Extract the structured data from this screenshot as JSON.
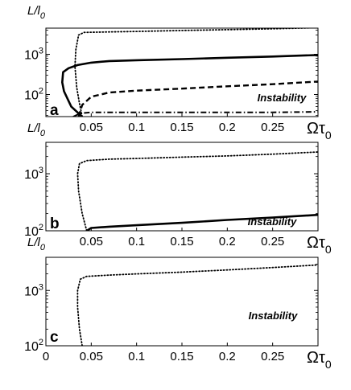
{
  "chart_data": [
    {
      "panel": "a",
      "type": "line",
      "ylabel": "L/l",
      "ylabel_sub": "0",
      "xlabel": "Ωτ",
      "xlabel_sub": "0",
      "xlim": [
        0,
        0.3
      ],
      "ylim_log10": [
        1.45,
        3.65
      ],
      "y_scale": "log",
      "x_ticks": [
        "0.05",
        "0.1",
        "0.15",
        "0.2",
        "0.25"
      ],
      "y_ticks": [
        {
          "base": "10",
          "exp": "2",
          "log10": 2
        },
        {
          "base": "10",
          "exp": "3",
          "log10": 3
        }
      ],
      "annotation": "Instability",
      "series": [
        {
          "style": "dotted",
          "points": [
            [
              0.04,
              28
            ],
            [
              0.037,
              60
            ],
            [
              0.034,
              150
            ],
            [
              0.032,
              500
            ],
            [
              0.033,
              1300
            ],
            [
              0.036,
              3000
            ],
            [
              0.042,
              3500
            ],
            [
              0.07,
              3600
            ],
            [
              0.1,
              3700
            ],
            [
              0.15,
              3900
            ],
            [
              0.2,
              4100
            ],
            [
              0.25,
              4300
            ],
            [
              0.3,
              4600
            ]
          ]
        },
        {
          "style": "solid",
          "points": [
            [
              0.04,
              28
            ],
            [
              0.028,
              50
            ],
            [
              0.02,
              120
            ],
            [
              0.018,
              200
            ],
            [
              0.019,
              360
            ],
            [
              0.025,
              450
            ],
            [
              0.035,
              540
            ],
            [
              0.05,
              620
            ],
            [
              0.07,
              680
            ],
            [
              0.1,
              710
            ],
            [
              0.15,
              760
            ],
            [
              0.2,
              820
            ],
            [
              0.25,
              880
            ],
            [
              0.3,
              960
            ]
          ]
        },
        {
          "style": "dashed",
          "points": [
            [
              0.036,
              28
            ],
            [
              0.04,
              55
            ],
            [
              0.05,
              88
            ],
            [
              0.07,
              112
            ],
            [
              0.1,
              125
            ],
            [
              0.15,
              140
            ],
            [
              0.2,
              160
            ],
            [
              0.25,
              180
            ],
            [
              0.3,
              210
            ]
          ]
        },
        {
          "style": "dashdot",
          "points": [
            [
              0.03,
              28
            ],
            [
              0.038,
              34
            ],
            [
              0.05,
              36
            ],
            [
              0.1,
              36
            ],
            [
              0.15,
              36
            ],
            [
              0.2,
              36
            ],
            [
              0.25,
              36
            ],
            [
              0.3,
              37
            ]
          ]
        }
      ]
    },
    {
      "panel": "b",
      "type": "line",
      "ylabel": "L/l",
      "ylabel_sub": "0",
      "xlabel": "Ωτ",
      "xlabel_sub": "0",
      "xlim": [
        0,
        0.3
      ],
      "ylim_log10": [
        2.0,
        3.55
      ],
      "y_scale": "log",
      "x_ticks": [
        "0.05",
        "0.1",
        "0.15",
        "0.2",
        "0.25"
      ],
      "y_ticks": [
        {
          "base": "10",
          "exp": "2",
          "log10": 2
        },
        {
          "base": "10",
          "exp": "3",
          "log10": 3
        }
      ],
      "annotation": "Instability",
      "series": [
        {
          "style": "dotted",
          "points": [
            [
              0.045,
              100
            ],
            [
              0.04,
              200
            ],
            [
              0.036,
              500
            ],
            [
              0.035,
              1000
            ],
            [
              0.037,
              1500
            ],
            [
              0.045,
              1700
            ],
            [
              0.07,
              1800
            ],
            [
              0.1,
              1850
            ],
            [
              0.15,
              1950
            ],
            [
              0.2,
              2050
            ],
            [
              0.25,
              2200
            ],
            [
              0.3,
              2400
            ]
          ]
        },
        {
          "style": "solid",
          "points": [
            [
              0.045,
              100
            ],
            [
              0.05,
              112
            ],
            [
              0.07,
              118
            ],
            [
              0.1,
              125
            ],
            [
              0.15,
              138
            ],
            [
              0.2,
              155
            ],
            [
              0.25,
              170
            ],
            [
              0.3,
              190
            ]
          ]
        }
      ]
    },
    {
      "panel": "c",
      "type": "line",
      "ylabel": "L/l",
      "ylabel_sub": "0",
      "xlabel": "Ωτ",
      "xlabel_sub": "0",
      "xlim": [
        0,
        0.3
      ],
      "ylim_log10": [
        2.0,
        3.6
      ],
      "y_scale": "log",
      "x_tick_zero": "0",
      "x_ticks": [
        "0.05",
        "0.1",
        "0.15",
        "0.2",
        "0.25"
      ],
      "y_ticks": [
        {
          "base": "10",
          "exp": "2",
          "log10": 2
        },
        {
          "base": "10",
          "exp": "3",
          "log10": 3
        }
      ],
      "annotation": "Instability",
      "series": [
        {
          "style": "dotted",
          "points": [
            [
              0.04,
              100
            ],
            [
              0.037,
              200
            ],
            [
              0.035,
              500
            ],
            [
              0.035,
              1000
            ],
            [
              0.038,
              1600
            ],
            [
              0.045,
              1800
            ],
            [
              0.07,
              1900
            ],
            [
              0.1,
              2000
            ],
            [
              0.15,
              2150
            ],
            [
              0.2,
              2350
            ],
            [
              0.25,
              2600
            ],
            [
              0.3,
              2900
            ]
          ]
        }
      ]
    }
  ]
}
